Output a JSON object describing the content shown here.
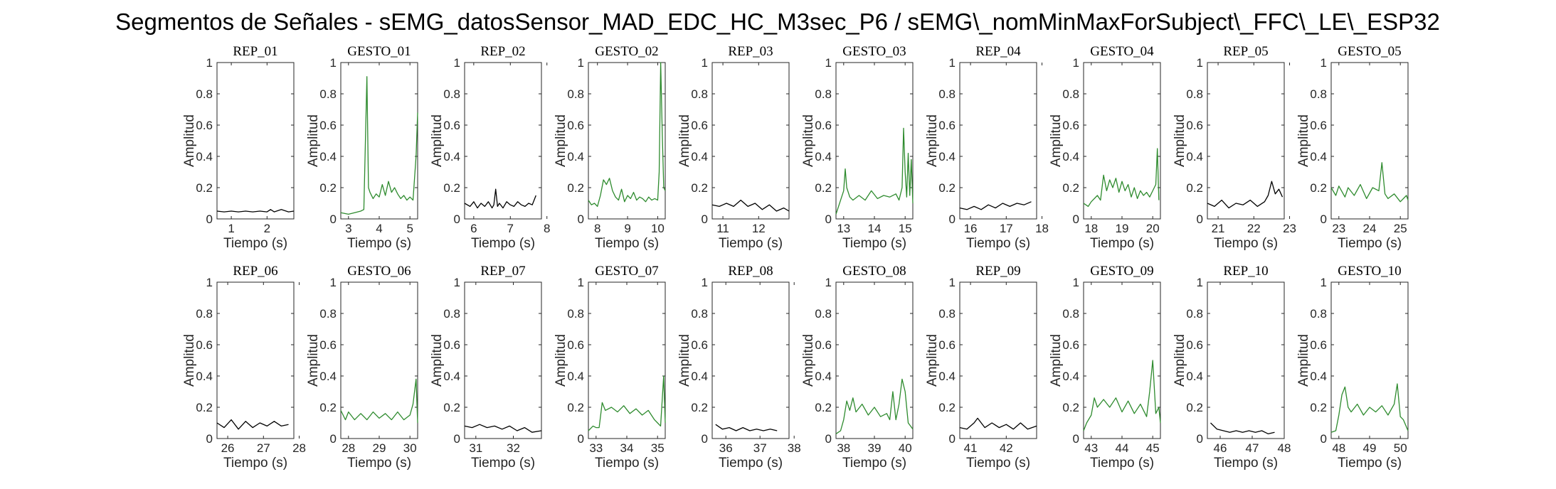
{
  "title": "Segmentos de Señales - sEMG_datosSensor_MAD_EDC_HC_M3sec_P6 / sEMG\\_nomMinMaxForSubject\\_FFC\\_LE\\_ESP32",
  "colors": {
    "rep": "#000000",
    "gesto": "#2e8b2e"
  },
  "chart_data": [
    {
      "type": "line",
      "title": "REP_01",
      "xlabel": "Tiempo (s)",
      "ylabel": "Amplitud",
      "xlim": [
        0.6,
        2.75
      ],
      "ylim": [
        0,
        1
      ],
      "xticks": [
        "1",
        "2"
      ],
      "yticks": [
        "0",
        "0.2",
        "0.4",
        "0.6",
        "0.8",
        "1"
      ],
      "color": "rep",
      "x": [
        0.6,
        0.8,
        1.0,
        1.2,
        1.4,
        1.6,
        1.8,
        2.0,
        2.1,
        2.2,
        2.4,
        2.6,
        2.75
      ],
      "y": [
        0.05,
        0.045,
        0.05,
        0.045,
        0.05,
        0.045,
        0.05,
        0.045,
        0.06,
        0.045,
        0.06,
        0.045,
        0.05
      ]
    },
    {
      "type": "line",
      "title": "GESTO_01",
      "xlabel": "Tiempo (s)",
      "ylabel": "Amplitud",
      "xlim": [
        2.75,
        5.25
      ],
      "ylim": [
        0,
        1
      ],
      "xticks": [
        "3",
        "4",
        "5"
      ],
      "yticks": [
        "0",
        "0.2",
        "0.4",
        "0.6",
        "0.8",
        "1"
      ],
      "color": "gesto",
      "x": [
        2.75,
        3.0,
        3.2,
        3.4,
        3.5,
        3.55,
        3.6,
        3.65,
        3.7,
        3.8,
        3.9,
        4.0,
        4.1,
        4.2,
        4.3,
        4.4,
        4.5,
        4.6,
        4.7,
        4.8,
        4.9,
        5.0,
        5.1,
        5.2,
        5.25
      ],
      "y": [
        0.04,
        0.03,
        0.04,
        0.05,
        0.06,
        0.5,
        0.91,
        0.2,
        0.17,
        0.13,
        0.16,
        0.14,
        0.22,
        0.15,
        0.24,
        0.17,
        0.2,
        0.16,
        0.13,
        0.15,
        0.12,
        0.14,
        0.12,
        0.4,
        0.68
      ]
    },
    {
      "type": "line",
      "title": "REP_02",
      "xlabel": "Tiempo (s)",
      "ylabel": "Amplitud",
      "xlim": [
        5.75,
        7.85
      ],
      "ylim": [
        0,
        1
      ],
      "xticks": [
        "6",
        "7",
        "8"
      ],
      "yticks": [
        "0",
        "0.2",
        "0.4",
        "0.6",
        "0.8",
        "1"
      ],
      "color": "rep",
      "x": [
        5.75,
        5.9,
        6.0,
        6.1,
        6.2,
        6.3,
        6.4,
        6.5,
        6.55,
        6.6,
        6.65,
        6.7,
        6.8,
        6.9,
        7.0,
        7.1,
        7.2,
        7.3,
        7.4,
        7.5,
        7.6,
        7.7
      ],
      "y": [
        0.1,
        0.08,
        0.11,
        0.07,
        0.1,
        0.08,
        0.11,
        0.07,
        0.09,
        0.19,
        0.08,
        0.1,
        0.07,
        0.11,
        0.09,
        0.08,
        0.11,
        0.09,
        0.08,
        0.1,
        0.09,
        0.15
      ]
    },
    {
      "type": "line",
      "title": "GESTO_02",
      "xlabel": "Tiempo (s)",
      "ylabel": "Amplitud",
      "xlim": [
        7.7,
        10.25
      ],
      "ylim": [
        0,
        1
      ],
      "xticks": [
        "8",
        "9",
        "10"
      ],
      "yticks": [
        "0",
        "0.2",
        "0.4",
        "0.6",
        "0.8",
        "1"
      ],
      "color": "gesto",
      "x": [
        7.7,
        7.8,
        7.9,
        8.0,
        8.1,
        8.2,
        8.3,
        8.4,
        8.5,
        8.6,
        8.7,
        8.8,
        8.9,
        9.0,
        9.1,
        9.2,
        9.3,
        9.4,
        9.5,
        9.6,
        9.7,
        9.8,
        9.9,
        10.0,
        10.05,
        10.1,
        10.15,
        10.2,
        10.25
      ],
      "y": [
        0.12,
        0.09,
        0.1,
        0.08,
        0.15,
        0.25,
        0.22,
        0.26,
        0.18,
        0.14,
        0.12,
        0.19,
        0.11,
        0.15,
        0.13,
        0.17,
        0.12,
        0.14,
        0.13,
        0.11,
        0.14,
        0.12,
        0.13,
        0.12,
        0.3,
        1.0,
        0.55,
        0.2,
        0.18
      ]
    },
    {
      "type": "line",
      "title": "REP_03",
      "xlabel": "Tiempo (s)",
      "ylabel": "Amplitud",
      "xlim": [
        10.7,
        12.85
      ],
      "ylim": [
        0,
        1
      ],
      "xticks": [
        "11",
        "12"
      ],
      "yticks": [
        "0",
        "0.2",
        "0.4",
        "0.6",
        "0.8",
        "1"
      ],
      "color": "rep",
      "x": [
        10.7,
        10.9,
        11.1,
        11.3,
        11.5,
        11.7,
        11.9,
        12.1,
        12.3,
        12.5,
        12.7,
        12.85
      ],
      "y": [
        0.09,
        0.08,
        0.1,
        0.08,
        0.12,
        0.08,
        0.1,
        0.06,
        0.09,
        0.05,
        0.07,
        0.05
      ]
    },
    {
      "type": "line",
      "title": "GESTO_03",
      "xlabel": "Tiempo (s)",
      "ylabel": "Amplitud",
      "xlim": [
        12.75,
        15.25
      ],
      "ylim": [
        0,
        1
      ],
      "xticks": [
        "13",
        "14",
        "15"
      ],
      "yticks": [
        "0",
        "0.2",
        "0.4",
        "0.6",
        "0.8",
        "1"
      ],
      "color": "gesto",
      "x": [
        12.75,
        12.9,
        13.0,
        13.05,
        13.1,
        13.2,
        13.3,
        13.5,
        13.7,
        13.9,
        14.1,
        14.3,
        14.5,
        14.7,
        14.8,
        14.9,
        14.95,
        15.0,
        15.05,
        15.1,
        15.15,
        15.2,
        15.25
      ],
      "y": [
        0.03,
        0.12,
        0.18,
        0.32,
        0.2,
        0.14,
        0.12,
        0.15,
        0.12,
        0.18,
        0.13,
        0.15,
        0.14,
        0.16,
        0.12,
        0.2,
        0.58,
        0.3,
        0.14,
        0.42,
        0.15,
        0.38,
        0.1
      ]
    },
    {
      "type": "line",
      "title": "REP_04",
      "xlabel": "Tiempo (s)",
      "ylabel": "Amplitud",
      "xlim": [
        15.7,
        17.85
      ],
      "ylim": [
        0,
        1
      ],
      "xticks": [
        "16",
        "17",
        "18"
      ],
      "yticks": [
        "0",
        "0.2",
        "0.4",
        "0.6",
        "0.8",
        "1"
      ],
      "color": "rep",
      "x": [
        15.7,
        15.9,
        16.1,
        16.3,
        16.5,
        16.7,
        16.9,
        17.1,
        17.3,
        17.5,
        17.7
      ],
      "y": [
        0.07,
        0.06,
        0.08,
        0.06,
        0.09,
        0.07,
        0.1,
        0.08,
        0.1,
        0.09,
        0.11
      ]
    },
    {
      "type": "line",
      "title": "GESTO_04",
      "xlabel": "Tiempo (s)",
      "ylabel": "Amplitud",
      "xlim": [
        17.75,
        20.25
      ],
      "ylim": [
        0,
        1
      ],
      "xticks": [
        "18",
        "19",
        "20"
      ],
      "yticks": [
        "0",
        "0.2",
        "0.4",
        "0.6",
        "0.8",
        "1"
      ],
      "color": "gesto",
      "x": [
        17.75,
        17.9,
        18.0,
        18.2,
        18.3,
        18.4,
        18.5,
        18.6,
        18.7,
        18.8,
        18.9,
        19.0,
        19.1,
        19.2,
        19.3,
        19.4,
        19.5,
        19.6,
        19.7,
        19.8,
        19.9,
        20.0,
        20.1,
        20.15,
        20.2
      ],
      "y": [
        0.1,
        0.08,
        0.11,
        0.15,
        0.12,
        0.28,
        0.18,
        0.25,
        0.2,
        0.26,
        0.17,
        0.24,
        0.18,
        0.22,
        0.14,
        0.2,
        0.13,
        0.18,
        0.15,
        0.17,
        0.14,
        0.18,
        0.22,
        0.45,
        0.12
      ]
    },
    {
      "type": "line",
      "title": "REP_05",
      "xlabel": "Tiempo (s)",
      "ylabel": "Amplitud",
      "xlim": [
        20.7,
        22.85
      ],
      "ylim": [
        0,
        1
      ],
      "xticks": [
        "21",
        "22",
        "23"
      ],
      "yticks": [
        "0",
        "0.2",
        "0.4",
        "0.6",
        "0.8",
        "1"
      ],
      "color": "rep",
      "x": [
        20.7,
        20.9,
        21.1,
        21.3,
        21.5,
        21.7,
        21.9,
        22.1,
        22.3,
        22.4,
        22.5,
        22.6,
        22.7,
        22.8
      ],
      "y": [
        0.1,
        0.08,
        0.12,
        0.07,
        0.1,
        0.09,
        0.12,
        0.08,
        0.11,
        0.15,
        0.24,
        0.16,
        0.19,
        0.14
      ]
    },
    {
      "type": "line",
      "title": "GESTO_05",
      "xlabel": "Tiempo (s)",
      "ylabel": "Amplitud",
      "xlim": [
        22.75,
        25.25
      ],
      "ylim": [
        0,
        1
      ],
      "xticks": [
        "23",
        "24",
        "25"
      ],
      "yticks": [
        "0",
        "0.2",
        "0.4",
        "0.6",
        "0.8",
        "1"
      ],
      "color": "gesto",
      "x": [
        22.75,
        22.9,
        23.0,
        23.2,
        23.3,
        23.5,
        23.7,
        23.9,
        24.1,
        24.3,
        24.4,
        24.5,
        24.6,
        24.8,
        25.0,
        25.2,
        25.25
      ],
      "y": [
        0.2,
        0.15,
        0.21,
        0.14,
        0.2,
        0.15,
        0.22,
        0.13,
        0.2,
        0.18,
        0.36,
        0.16,
        0.13,
        0.16,
        0.11,
        0.15,
        0.12
      ]
    },
    {
      "type": "line",
      "title": "REP_06",
      "xlabel": "Tiempo (s)",
      "ylabel": "Amplitud",
      "xlim": [
        25.7,
        27.85
      ],
      "ylim": [
        0,
        1
      ],
      "xticks": [
        "26",
        "27",
        "28"
      ],
      "yticks": [
        "0",
        "0.2",
        "0.4",
        "0.6",
        "0.8",
        "1"
      ],
      "color": "rep",
      "x": [
        25.7,
        25.9,
        26.1,
        26.3,
        26.5,
        26.7,
        26.9,
        27.1,
        27.3,
        27.5,
        27.7
      ],
      "y": [
        0.1,
        0.07,
        0.12,
        0.06,
        0.11,
        0.07,
        0.1,
        0.08,
        0.11,
        0.08,
        0.09
      ]
    },
    {
      "type": "line",
      "title": "GESTO_06",
      "xlabel": "Tiempo (s)",
      "ylabel": "Amplitud",
      "xlim": [
        27.75,
        30.25
      ],
      "ylim": [
        0,
        1
      ],
      "xticks": [
        "28",
        "29",
        "30"
      ],
      "yticks": [
        "0",
        "0.2",
        "0.4",
        "0.6",
        "0.8",
        "1"
      ],
      "color": "gesto",
      "x": [
        27.75,
        27.9,
        28.0,
        28.2,
        28.4,
        28.6,
        28.8,
        29.0,
        29.2,
        29.4,
        29.6,
        29.8,
        30.0,
        30.1,
        30.2,
        30.25
      ],
      "y": [
        0.18,
        0.12,
        0.17,
        0.12,
        0.16,
        0.12,
        0.17,
        0.13,
        0.16,
        0.12,
        0.17,
        0.12,
        0.15,
        0.22,
        0.38,
        0.1
      ]
    },
    {
      "type": "line",
      "title": "REP_07",
      "xlabel": "Tiempo (s)",
      "ylabel": "Amplitud",
      "xlim": [
        30.7,
        32.75
      ],
      "ylim": [
        0,
        1
      ],
      "xticks": [
        "31",
        "32"
      ],
      "yticks": [
        "0",
        "0.2",
        "0.4",
        "0.6",
        "0.8",
        "1"
      ],
      "color": "rep",
      "x": [
        30.7,
        30.9,
        31.1,
        31.3,
        31.5,
        31.7,
        31.9,
        32.1,
        32.3,
        32.5,
        32.75
      ],
      "y": [
        0.08,
        0.07,
        0.09,
        0.07,
        0.08,
        0.06,
        0.08,
        0.05,
        0.07,
        0.04,
        0.05
      ]
    },
    {
      "type": "line",
      "title": "GESTO_07",
      "xlabel": "Tiempo (s)",
      "ylabel": "Amplitud",
      "xlim": [
        32.75,
        35.25
      ],
      "ylim": [
        0,
        1
      ],
      "xticks": [
        "33",
        "34",
        "35"
      ],
      "yticks": [
        "0",
        "0.2",
        "0.4",
        "0.6",
        "0.8",
        "1"
      ],
      "color": "gesto",
      "x": [
        32.75,
        32.9,
        33.0,
        33.1,
        33.2,
        33.3,
        33.5,
        33.7,
        33.9,
        34.1,
        34.3,
        34.5,
        34.7,
        34.9,
        35.0,
        35.1,
        35.2,
        35.25
      ],
      "y": [
        0.05,
        0.08,
        0.07,
        0.07,
        0.23,
        0.18,
        0.2,
        0.17,
        0.21,
        0.16,
        0.19,
        0.15,
        0.18,
        0.12,
        0.1,
        0.08,
        0.4,
        0.1
      ]
    },
    {
      "type": "line",
      "title": "REP_08",
      "xlabel": "Tiempo (s)",
      "ylabel": "Amplitud",
      "xlim": [
        35.6,
        37.85
      ],
      "ylim": [
        0,
        1
      ],
      "xticks": [
        "36",
        "37",
        "38"
      ],
      "yticks": [
        "0",
        "0.2",
        "0.4",
        "0.6",
        "0.8",
        "1"
      ],
      "color": "rep",
      "x": [
        35.7,
        35.9,
        36.1,
        36.3,
        36.5,
        36.7,
        36.9,
        37.1,
        37.3,
        37.5
      ],
      "y": [
        0.09,
        0.06,
        0.07,
        0.05,
        0.07,
        0.05,
        0.06,
        0.05,
        0.06,
        0.05
      ]
    },
    {
      "type": "line",
      "title": "GESTO_08",
      "xlabel": "Tiempo (s)",
      "ylabel": "Amplitud",
      "xlim": [
        37.75,
        40.25
      ],
      "ylim": [
        0,
        1
      ],
      "xticks": [
        "38",
        "39",
        "40"
      ],
      "yticks": [
        "0",
        "0.2",
        "0.4",
        "0.6",
        "0.8",
        "1"
      ],
      "color": "gesto",
      "x": [
        37.75,
        37.9,
        38.0,
        38.1,
        38.2,
        38.3,
        38.4,
        38.6,
        38.8,
        39.0,
        39.2,
        39.4,
        39.5,
        39.6,
        39.7,
        39.8,
        39.9,
        40.0,
        40.1,
        40.25
      ],
      "y": [
        0.03,
        0.05,
        0.12,
        0.24,
        0.18,
        0.26,
        0.17,
        0.22,
        0.15,
        0.2,
        0.14,
        0.16,
        0.12,
        0.3,
        0.12,
        0.22,
        0.38,
        0.3,
        0.1,
        0.06
      ]
    },
    {
      "type": "line",
      "title": "REP_09",
      "xlabel": "Tiempo (s)",
      "ylabel": "Amplitud",
      "xlim": [
        40.7,
        42.85
      ],
      "ylim": [
        0,
        1
      ],
      "xticks": [
        "41",
        "42"
      ],
      "yticks": [
        "0",
        "0.2",
        "0.4",
        "0.6",
        "0.8",
        "1"
      ],
      "color": "rep",
      "x": [
        40.7,
        40.9,
        41.1,
        41.2,
        41.4,
        41.6,
        41.8,
        42.0,
        42.2,
        42.4,
        42.6,
        42.85
      ],
      "y": [
        0.07,
        0.06,
        0.1,
        0.13,
        0.07,
        0.1,
        0.07,
        0.09,
        0.06,
        0.1,
        0.06,
        0.08
      ]
    },
    {
      "type": "line",
      "title": "GESTO_09",
      "xlabel": "Tiempo (s)",
      "ylabel": "Amplitud",
      "xlim": [
        42.75,
        45.25
      ],
      "ylim": [
        0,
        1
      ],
      "xticks": [
        "43",
        "44",
        "45"
      ],
      "yticks": [
        "0",
        "0.2",
        "0.4",
        "0.6",
        "0.8",
        "1"
      ],
      "color": "gesto",
      "x": [
        42.75,
        42.85,
        43.0,
        43.1,
        43.2,
        43.4,
        43.6,
        43.8,
        44.0,
        44.2,
        44.4,
        44.6,
        44.8,
        44.9,
        45.0,
        45.1,
        45.2,
        45.25
      ],
      "y": [
        0.05,
        0.1,
        0.15,
        0.26,
        0.2,
        0.25,
        0.2,
        0.26,
        0.17,
        0.24,
        0.16,
        0.22,
        0.14,
        0.3,
        0.5,
        0.16,
        0.2,
        0.1
      ]
    },
    {
      "type": "line",
      "title": "REP_10",
      "xlabel": "Tiempo (s)",
      "ylabel": "Amplitud",
      "xlim": [
        45.6,
        48.0
      ],
      "ylim": [
        0,
        1
      ],
      "xticks": [
        "46",
        "47",
        "48"
      ],
      "yticks": [
        "0",
        "0.2",
        "0.4",
        "0.6",
        "0.8",
        "1"
      ],
      "color": "rep",
      "x": [
        45.7,
        45.9,
        46.1,
        46.3,
        46.5,
        46.7,
        46.9,
        47.1,
        47.3,
        47.5,
        47.7
      ],
      "y": [
        0.1,
        0.06,
        0.05,
        0.04,
        0.05,
        0.04,
        0.05,
        0.04,
        0.05,
        0.03,
        0.04
      ]
    },
    {
      "type": "line",
      "title": "GESTO_10",
      "xlabel": "Tiempo (s)",
      "ylabel": "Amplitud",
      "xlim": [
        47.75,
        50.25
      ],
      "ylim": [
        0,
        1
      ],
      "xticks": [
        "48",
        "49",
        "50"
      ],
      "yticks": [
        "0",
        "0.2",
        "0.4",
        "0.6",
        "0.8",
        "1"
      ],
      "color": "gesto",
      "x": [
        47.75,
        47.9,
        48.0,
        48.1,
        48.2,
        48.3,
        48.4,
        48.6,
        48.8,
        49.0,
        49.2,
        49.4,
        49.6,
        49.8,
        49.9,
        50.0,
        50.1,
        50.25
      ],
      "y": [
        0.04,
        0.05,
        0.15,
        0.28,
        0.33,
        0.2,
        0.17,
        0.22,
        0.15,
        0.2,
        0.17,
        0.21,
        0.15,
        0.22,
        0.35,
        0.14,
        0.12,
        0.05
      ]
    }
  ]
}
